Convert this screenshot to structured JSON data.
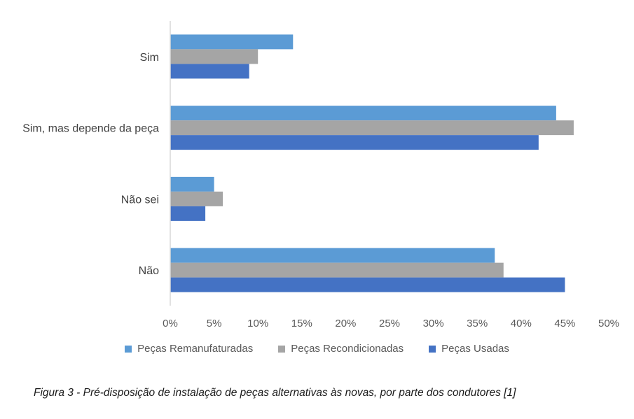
{
  "chart_data": {
    "type": "bar",
    "orientation": "horizontal",
    "categories": [
      "Sim",
      "Sim, mas depende da peça",
      "Não sei",
      "Não"
    ],
    "series": [
      {
        "name": "Peças Remanufaturadas",
        "color": "#5B9BD5",
        "values": [
          14,
          44,
          5,
          37
        ]
      },
      {
        "name": "Peças Recondicionadas",
        "color": "#A5A5A5",
        "values": [
          10,
          46,
          6,
          38
        ]
      },
      {
        "name": "Peças Usadas",
        "color": "#4472C4",
        "values": [
          9,
          42,
          4,
          45
        ]
      }
    ],
    "xlim": [
      0,
      50
    ],
    "xticks": [
      "0%",
      "5%",
      "10%",
      "15%",
      "20%",
      "25%",
      "30%",
      "35%",
      "40%",
      "45%",
      "50%"
    ],
    "legend_position": "bottom",
    "grid": false
  },
  "caption": "Figura 3 - Pré-disposição de instalação de peças alternativas às novas, por parte dos condutores [1]"
}
